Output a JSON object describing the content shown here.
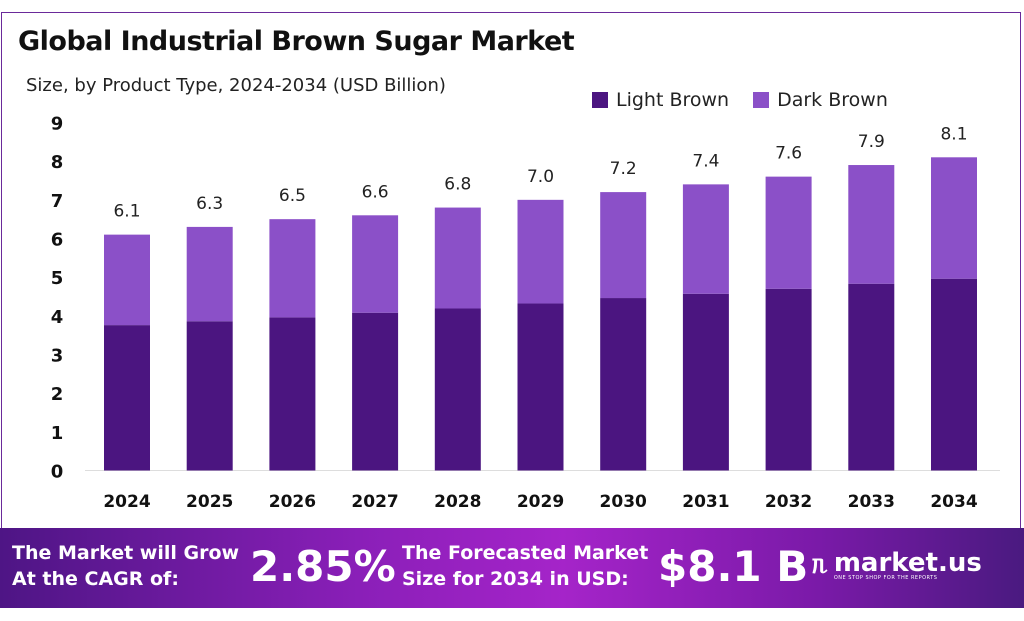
{
  "chart_data": {
    "type": "bar",
    "stacked": true,
    "title": "Global Industrial Brown Sugar Market",
    "subtitle": "Size, by Product Type, 2024-2034 (USD Billion)",
    "categories": [
      "2024",
      "2025",
      "2026",
      "2027",
      "2028",
      "2029",
      "2030",
      "2031",
      "2032",
      "2033",
      "2034"
    ],
    "series": [
      {
        "name": "Light Brown",
        "color": "#4b1580",
        "values": [
          3.76,
          3.86,
          3.96,
          4.08,
          4.19,
          4.32,
          4.46,
          4.57,
          4.7,
          4.83,
          4.96
        ]
      },
      {
        "name": "Dark Brown",
        "color": "#8b50c8",
        "values": [
          2.34,
          2.44,
          2.54,
          2.52,
          2.61,
          2.68,
          2.74,
          2.83,
          2.9,
          3.07,
          3.14
        ]
      }
    ],
    "totals_labels": [
      "6.1",
      "6.3",
      "6.5",
      "6.6",
      "6.8",
      "7.0",
      "7.2",
      "7.4",
      "7.6",
      "7.9",
      "8.1"
    ],
    "y_ticks": [
      "0",
      "1",
      "2",
      "3",
      "4",
      "5",
      "6",
      "7",
      "8",
      "9"
    ],
    "ylim": [
      0,
      9
    ],
    "grid": false,
    "legend": "top-right"
  },
  "footer": {
    "cagr_text_line1": "The Market will Grow",
    "cagr_text_line2": "At the CAGR of:",
    "cagr_value": "2.85%",
    "forecast_text_line1": "The Forecasted Market",
    "forecast_text_line2": "Size for 2034 in USD:",
    "forecast_value": "$8.1 B",
    "logo_text": "market.us",
    "logo_tagline": "ONE STOP SHOP FOR THE REPORTS"
  }
}
